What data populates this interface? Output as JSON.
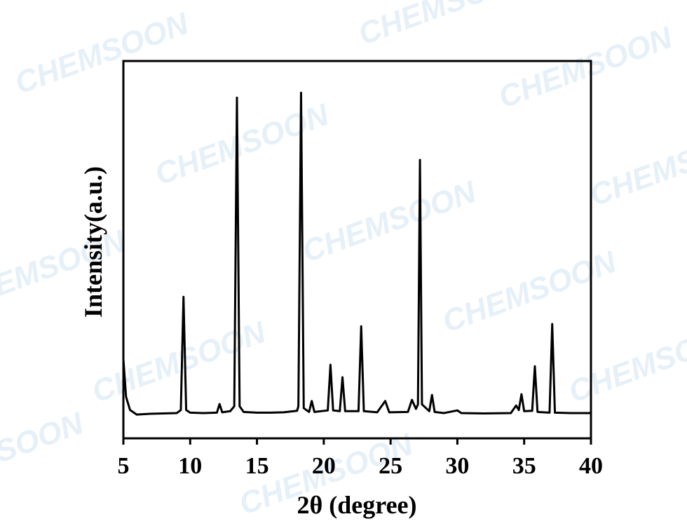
{
  "chart_data": {
    "type": "line",
    "watermark": "CHEMSOON",
    "x_label": "2θ (degree)",
    "y_label": "Intensity(a.u.)",
    "xlim": [
      5,
      40
    ],
    "xticks": [
      5,
      10,
      15,
      20,
      25,
      30,
      35,
      40
    ],
    "ylim": [
      0,
      100
    ],
    "x": [
      5.0,
      5.2,
      5.5,
      6.0,
      7.0,
      8.0,
      9.0,
      9.3,
      9.5,
      9.7,
      10.0,
      11.0,
      12.0,
      12.2,
      12.4,
      13.0,
      13.3,
      13.5,
      13.7,
      14.0,
      15.0,
      16.0,
      17.0,
      18.0,
      18.1,
      18.3,
      18.5,
      18.9,
      19.1,
      19.3,
      20.3,
      20.5,
      20.7,
      21.2,
      21.4,
      21.6,
      22.6,
      22.8,
      23.0,
      24.0,
      24.6,
      24.9,
      26.3,
      26.6,
      26.9,
      27.05,
      27.2,
      27.35,
      27.9,
      28.1,
      28.3,
      29.0,
      30.0,
      30.3,
      32.0,
      34.0,
      34.4,
      34.6,
      34.8,
      35.0,
      35.6,
      35.8,
      36.0,
      36.9,
      37.1,
      37.3,
      38.5,
      40.0
    ],
    "series": [
      {
        "color": "#000000",
        "values": [
          21,
          11,
          7.5,
          6.3,
          6.5,
          6.6,
          6.7,
          7.5,
          37.5,
          7.5,
          6.8,
          6.7,
          6.8,
          9.1,
          6.9,
          7.2,
          8.5,
          90.3,
          8.5,
          7.0,
          6.8,
          6.8,
          6.9,
          7.3,
          8.5,
          91.6,
          8.0,
          7.0,
          9.9,
          7.0,
          7.4,
          19.5,
          7.4,
          7.2,
          16.2,
          7.2,
          7.2,
          29.7,
          7.2,
          6.9,
          9.9,
          6.9,
          7.0,
          10.2,
          7.8,
          9,
          73.8,
          9,
          7.2,
          11.5,
          7.0,
          6.7,
          7.4,
          6.7,
          6.6,
          6.7,
          8.7,
          7.5,
          11.7,
          7.2,
          7.3,
          19.1,
          7.0,
          6.8,
          30.3,
          6.8,
          6.7,
          6.7
        ]
      }
    ]
  }
}
